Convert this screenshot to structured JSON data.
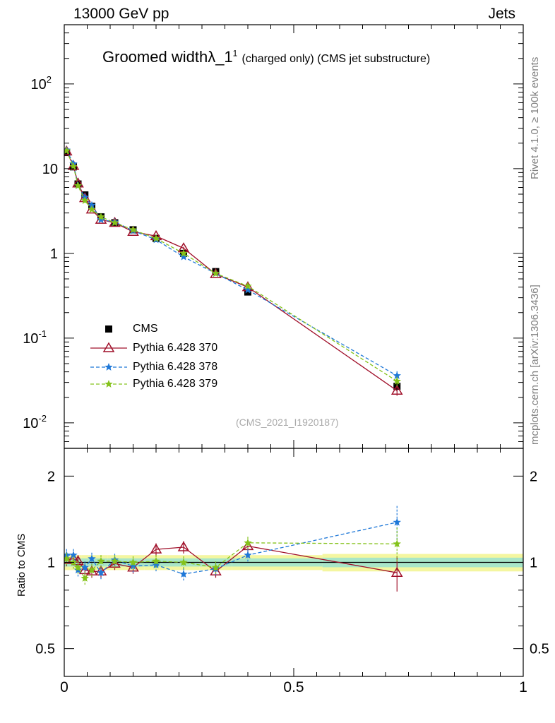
{
  "header": {
    "left_label": "13000 GeV pp",
    "right_label": "Jets"
  },
  "title": {
    "main": "Groomed width",
    "lambda": "λ_1",
    "superscript": "1",
    "subtitle": "(charged only) (CMS jet substructure)"
  },
  "side_labels": {
    "rivet": "Rivet 4.1.0, ≥ 100k events",
    "mcplots": "mcplots.cern.ch [arXiv:1306.3436]"
  },
  "watermark": "(CMS_2021_I1920187)",
  "ratio_ylabel": "Ratio to CMS",
  "colors": {
    "cms": "#000000",
    "p370": "#a0102a",
    "p378": "#1f78d8",
    "p379": "#84c21a",
    "band_inner": "#a8e6c8",
    "band_outer": "#f4f6a0"
  },
  "chart_data": [
    {
      "type": "scatter",
      "title": "Groomed width λ_1^1 (charged only) (CMS jet substructure)",
      "xlabel": "",
      "ylabel": "",
      "yscale": "log",
      "xlim": [
        0,
        1
      ],
      "ylim": [
        0.005,
        500
      ],
      "y_ticks": [
        {
          "value": 0.01,
          "label": "10",
          "exp": "-2"
        },
        {
          "value": 0.1,
          "label": "10",
          "exp": "-1"
        },
        {
          "value": 1,
          "label": "1",
          "exp": ""
        },
        {
          "value": 10,
          "label": "10",
          "exp": ""
        },
        {
          "value": 100,
          "label": "10",
          "exp": "2"
        }
      ],
      "x": [
        0.005,
        0.02,
        0.03,
        0.045,
        0.06,
        0.08,
        0.11,
        0.15,
        0.2,
        0.26,
        0.33,
        0.4,
        0.725
      ],
      "series": [
        {
          "name": "CMS",
          "style": "marker",
          "values": [
            15.5,
            10.5,
            6.6,
            4.9,
            3.6,
            2.7,
            2.3,
            1.9,
            1.5,
            1.0,
            0.61,
            0.35,
            0.027
          ]
        },
        {
          "name": "Pythia 6.428 370",
          "style": "solid",
          "values": [
            16.0,
            10.8,
            6.7,
            4.5,
            3.3,
            2.5,
            2.3,
            1.8,
            1.6,
            1.15,
            0.57,
            0.4,
            0.024
          ]
        },
        {
          "name": "Pythia 6.428 378",
          "style": "dashed",
          "values": [
            16.6,
            11.4,
            6.3,
            4.6,
            3.7,
            2.5,
            2.35,
            1.85,
            1.45,
            0.91,
            0.58,
            0.37,
            0.036
          ]
        },
        {
          "name": "Pythia 6.428 379",
          "style": "dashed",
          "values": [
            16.3,
            10.6,
            6.3,
            4.2,
            3.3,
            2.7,
            2.3,
            1.9,
            1.5,
            1.0,
            0.58,
            0.41,
            0.031
          ]
        }
      ]
    },
    {
      "type": "line",
      "title": "",
      "xlabel": "",
      "ylabel": "Ratio to CMS",
      "yscale": "log",
      "xlim": [
        0,
        1
      ],
      "ylim": [
        0.4,
        2.5
      ],
      "x_ticks": [
        {
          "value": 0,
          "label": "0"
        },
        {
          "value": 0.5,
          "label": "0.5"
        },
        {
          "value": 1,
          "label": "1"
        }
      ],
      "y_ticks": [
        {
          "value": 0.5,
          "label": "0.5"
        },
        {
          "value": 1,
          "label": "1"
        },
        {
          "value": 2,
          "label": "2"
        }
      ],
      "x": [
        0.005,
        0.02,
        0.03,
        0.045,
        0.06,
        0.08,
        0.11,
        0.15,
        0.2,
        0.26,
        0.33,
        0.4,
        0.725
      ],
      "series": [
        {
          "name": "Pythia 6.428 370",
          "style": "solid",
          "values": [
            1.02,
            1.03,
            1.01,
            0.94,
            0.93,
            0.93,
            0.99,
            0.96,
            1.11,
            1.13,
            0.93,
            1.14,
            0.92
          ]
        },
        {
          "name": "Pythia 6.428 378",
          "style": "dashed",
          "values": [
            1.06,
            1.06,
            0.94,
            0.96,
            1.03,
            0.92,
            1.02,
            0.97,
            0.98,
            0.91,
            0.95,
            1.06,
            1.38
          ]
        },
        {
          "name": "Pythia 6.428 379",
          "style": "dashed",
          "values": [
            1.03,
            1.0,
            0.96,
            0.88,
            0.94,
            1.01,
            1.01,
            1.0,
            1.01,
            1.0,
            0.96,
            1.17,
            1.16
          ]
        }
      ]
    }
  ]
}
